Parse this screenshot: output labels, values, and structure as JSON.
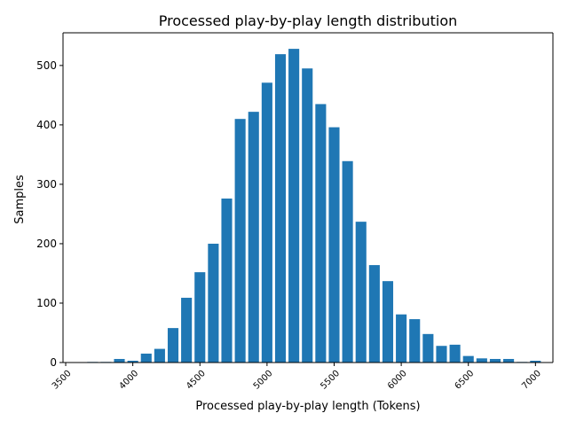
{
  "chart_data": {
    "type": "bar",
    "title": "Processed play-by-play length distribution",
    "xlabel": "Processed play-by-play length (Tokens)",
    "ylabel": "Samples",
    "xlim": [
      3480,
      7130
    ],
    "ylim": [
      0,
      555
    ],
    "bar_width": 80,
    "bar_color": "#1f77b4",
    "xticks": [
      3500,
      4000,
      4500,
      5000,
      5500,
      6000,
      6500,
      7000
    ],
    "xtick_labels": [
      "3500",
      "4000",
      "4500",
      "5000",
      "5500",
      "6000",
      "6500",
      "7000"
    ],
    "yticks": [
      0,
      100,
      200,
      300,
      400,
      500
    ],
    "ytick_labels": [
      "0",
      "100",
      "200",
      "300",
      "400",
      "500"
    ],
    "x": [
      3700,
      3800,
      3900,
      4000,
      4100,
      4200,
      4300,
      4400,
      4500,
      4600,
      4700,
      4800,
      4900,
      5000,
      5100,
      5200,
      5300,
      5400,
      5500,
      5600,
      5700,
      5800,
      5900,
      6000,
      6100,
      6200,
      6300,
      6400,
      6500,
      6600,
      6700,
      6800,
      6900,
      7000
    ],
    "values": [
      1,
      1,
      6,
      3,
      15,
      23,
      58,
      109,
      152,
      200,
      276,
      410,
      422,
      471,
      519,
      528,
      495,
      435,
      396,
      339,
      237,
      164,
      137,
      81,
      73,
      48,
      28,
      30,
      11,
      7,
      6,
      6,
      1,
      3
    ],
    "grid": false,
    "legend": "none"
  }
}
